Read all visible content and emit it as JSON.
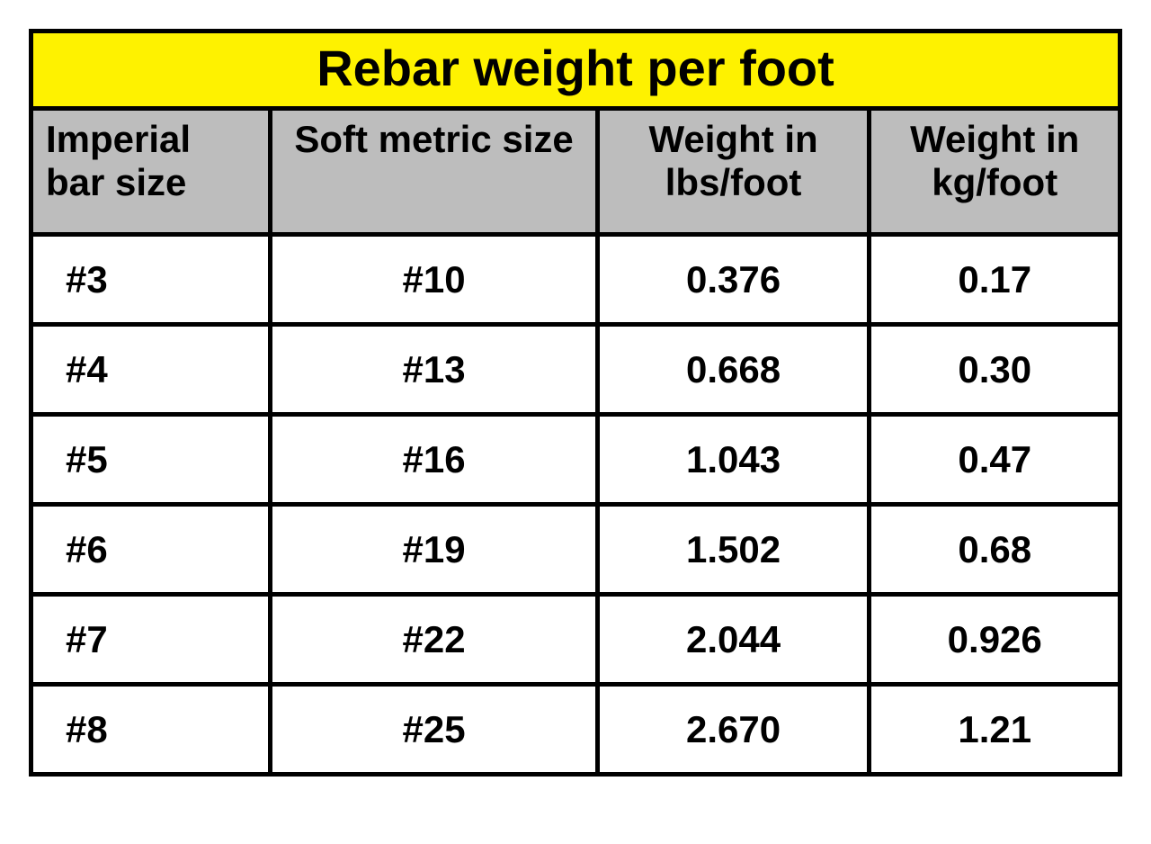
{
  "table": {
    "type": "table",
    "title": "Rebar weight per foot",
    "title_bg": "#fef200",
    "title_color": "#000000",
    "title_fontsize": 56,
    "title_fontweight": 700,
    "header_bg": "#bdbdbd",
    "header_color": "#000000",
    "header_fontsize": 42,
    "header_fontweight": 700,
    "cell_bg": "#ffffff",
    "cell_color": "#000000",
    "cell_fontsize": 42,
    "cell_fontweight": 700,
    "border_color": "#000000",
    "border_width": 5,
    "columns": [
      {
        "key": "imperial",
        "label": "Imperial bar size",
        "width_pct": 22,
        "align": "left"
      },
      {
        "key": "metric",
        "label": "Soft metric size",
        "width_pct": 30,
        "align": "center"
      },
      {
        "key": "lbs",
        "label": "Weight in lbs/foot",
        "width_pct": 25,
        "align": "center"
      },
      {
        "key": "kg",
        "label": "Weight in kg/foot",
        "width_pct": 23,
        "align": "center"
      }
    ],
    "rows": [
      {
        "imperial": "#3",
        "metric": "#10",
        "lbs": "0.376",
        "kg": "0.17"
      },
      {
        "imperial": "#4",
        "metric": "#13",
        "lbs": "0.668",
        "kg": "0.30"
      },
      {
        "imperial": "#5",
        "metric": "#16",
        "lbs": "1.043",
        "kg": "0.47"
      },
      {
        "imperial": "#6",
        "metric": "#19",
        "lbs": "1.502",
        "kg": "0.68"
      },
      {
        "imperial": "#7",
        "metric": "#22",
        "lbs": "2.044",
        "kg": "0.926"
      },
      {
        "imperial": "#8",
        "metric": "#25",
        "lbs": "2.670",
        "kg": "1.21"
      }
    ]
  }
}
